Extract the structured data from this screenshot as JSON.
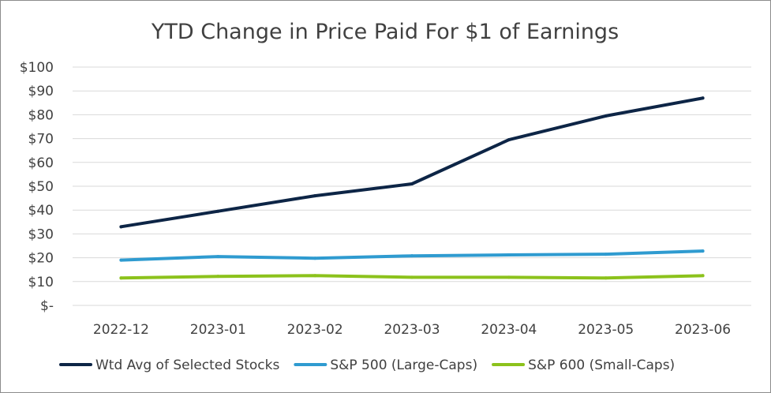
{
  "chart_data": {
    "type": "line",
    "title": "YTD Change in Price Paid For $1 of Earnings",
    "xlabel": "",
    "ylabel": "",
    "categories": [
      "2022-12",
      "2023-01",
      "2023-02",
      "2023-03",
      "2023-04",
      "2023-05",
      "2023-06"
    ],
    "ylim": [
      0,
      100
    ],
    "yticks": [
      0,
      10,
      20,
      30,
      40,
      50,
      60,
      70,
      80,
      90,
      100
    ],
    "ytick_labels": [
      "$-",
      "$10",
      "$20",
      "$30",
      "$40",
      "$50",
      "$60",
      "$70",
      "$80",
      "$90",
      "$100"
    ],
    "grid": true,
    "legend_position": "bottom",
    "series": [
      {
        "name": "Wtd Avg of Selected Stocks",
        "color": "#0d2546",
        "values": [
          33,
          39.5,
          46,
          51,
          69.5,
          79.5,
          87
        ]
      },
      {
        "name": "S&P 500 (Large-Caps)",
        "color": "#2f9bd0",
        "values": [
          19,
          20.5,
          19.8,
          20.8,
          21.2,
          21.5,
          22.8
        ]
      },
      {
        "name": "S&P 600 (Small-Caps)",
        "color": "#8cc21c",
        "values": [
          11.5,
          12.2,
          12.5,
          11.8,
          11.8,
          11.5,
          12.5
        ]
      }
    ]
  }
}
